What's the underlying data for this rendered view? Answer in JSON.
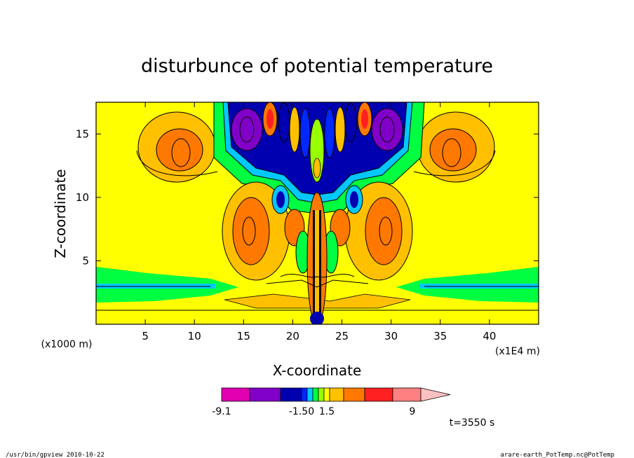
{
  "chart_data": {
    "type": "heatmap",
    "title": "disturbunce of potential temperature",
    "xlabel": "X-coordinate",
    "ylabel": "Z-coordinate",
    "x_unit": "(x1E4 m)",
    "y_unit": "(x1000 m)",
    "xlim": [
      0,
      45
    ],
    "ylim": [
      0,
      17.5
    ],
    "x_ticks": [
      5,
      10,
      15,
      20,
      25,
      30,
      35,
      40
    ],
    "y_ticks": [
      5,
      10,
      15
    ],
    "colorbar": {
      "colors": [
        "#e000b0",
        "#8000c8",
        "#0000b0",
        "#0028ff",
        "#00c8ff",
        "#00ff40",
        "#98ff00",
        "#ffff00",
        "#ffc000",
        "#ff7800",
        "#ff2020",
        "#ff8080",
        "#ffc0c0"
      ],
      "labels": [
        "-9.1",
        "-1.50",
        "1.5",
        "9"
      ]
    },
    "time_label": "t=3550 s"
  },
  "footer": {
    "left": "/usr/bin/gpview   2010-10-22",
    "right": "arare-earth_PotTemp.nc@PotTemp"
  }
}
